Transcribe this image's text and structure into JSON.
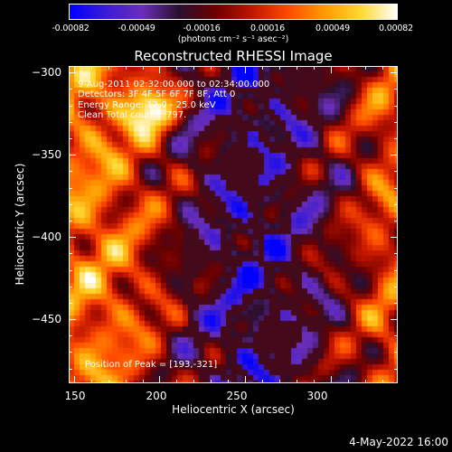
{
  "colorbar": {
    "stops": [
      "#0000ff",
      "#3c1bd8",
      "#6a2fb8",
      "#2a1030",
      "#6a0000",
      "#c01500",
      "#ff4a00",
      "#ff9a00",
      "#ffd830",
      "#ffffff"
    ],
    "tick_labels": [
      "-0.00082",
      "-0.00049",
      "-0.00016",
      "0.00016",
      "0.00049",
      "0.00082"
    ],
    "units": "(photons cm⁻² s⁻¹ asec⁻²)"
  },
  "chart_data": {
    "type": "heatmap",
    "title": "Reconstructed RHESSI Image",
    "xlabel": "Heliocentric X (arcsec)",
    "ylabel": "Heliocentric Y (arcsec)",
    "xlim": [
      147,
      339
    ],
    "ylim": [
      -489,
      -296
    ],
    "x_ticks": [
      150,
      200,
      250,
      300
    ],
    "y_ticks": [
      -300,
      -350,
      -400,
      -450
    ],
    "x_tick_labels": [
      "150",
      "200",
      "250",
      "300"
    ],
    "y_tick_labels": [
      "−300",
      "−350",
      "−400",
      "−450"
    ],
    "color_range": [
      -0.00082,
      0.00082
    ],
    "peak": [
      193,
      -321
    ],
    "annotations": [
      "9-Aug-2011 02:32:00.000 to 02:34:00.000",
      "Detectors: 3F 4F 5F 6F 7F 8F, Att 0",
      "Energy Range: 12.0 - 25.0 keV",
      "Clean    Total counts: 797.",
      "Position of Peak = [193,-321]"
    ]
  },
  "timestamp": "4-May-2022 16:00"
}
